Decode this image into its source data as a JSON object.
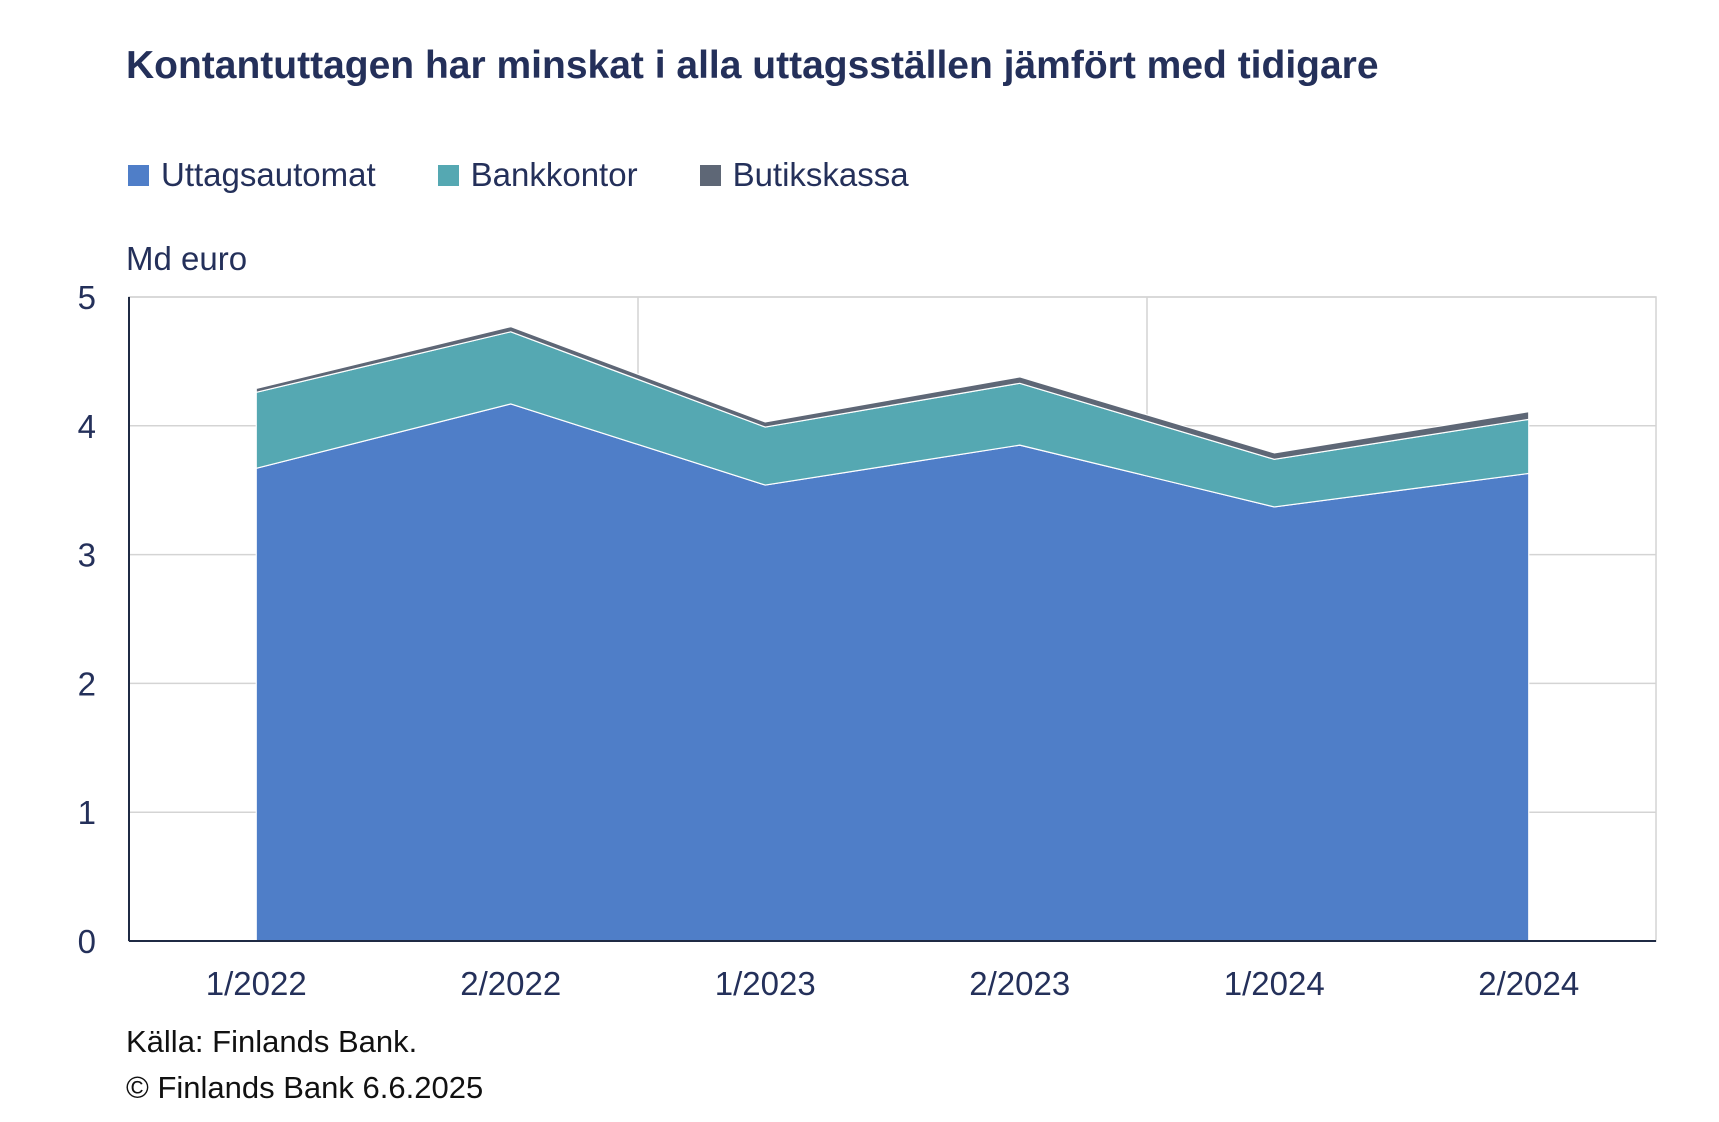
{
  "title": "Kontantuttagen har minskat i alla uttagsställen jämfört med tidigare",
  "unit_label": "Md euro",
  "source": "Källa: Finlands Bank.",
  "copyright": "© Finlands Bank 6.6.2025",
  "chart_data": {
    "type": "area",
    "stacked": true,
    "title": "Kontantuttagen har minskat i alla uttagsställen jämfört med tidigare",
    "ylabel": "Md euro",
    "ylim": [
      0,
      5
    ],
    "yticks": [
      "0",
      "1",
      "2",
      "3",
      "4",
      "5"
    ],
    "categories": [
      "1/2022",
      "2/2022",
      "1/2023",
      "2/2023",
      "1/2024",
      "2/2024"
    ],
    "grid": true,
    "legend_position": "top-left",
    "series": [
      {
        "name": "Uttagsautomat",
        "color": "#4f7ec8",
        "values": [
          3.67,
          4.17,
          3.54,
          3.85,
          3.37,
          3.63
        ]
      },
      {
        "name": "Bankkontor",
        "color": "#55a8b2",
        "values": [
          0.59,
          0.56,
          0.45,
          0.48,
          0.37,
          0.42
        ]
      },
      {
        "name": "Butikskassa",
        "color": "#5e6776",
        "values": [
          0.03,
          0.04,
          0.04,
          0.05,
          0.05,
          0.06
        ]
      }
    ]
  }
}
